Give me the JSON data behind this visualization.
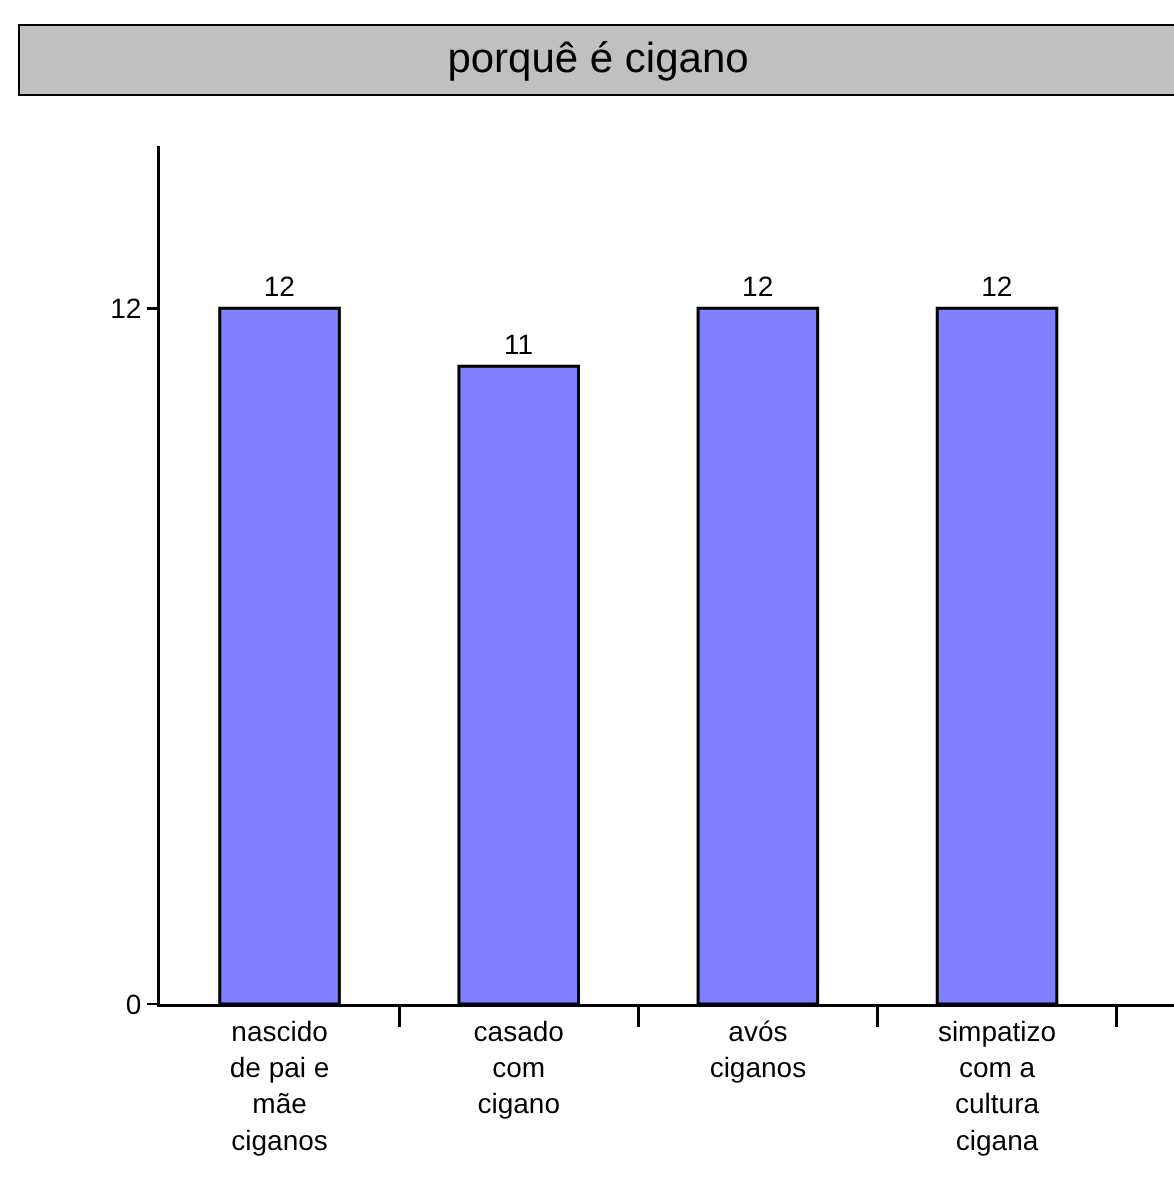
{
  "chart_data": {
    "type": "bar",
    "title": "porquê é cigano",
    "categories": [
      "nascido de pai e mãe ciganos",
      "casado com cigano",
      "avós ciganos",
      "simpatizo com a cultura cigana"
    ],
    "values": [
      12,
      11,
      12,
      12
    ],
    "color": "#8080ff",
    "ylim": [
      0,
      14.8
    ],
    "yticks": [
      0,
      12
    ],
    "data_labels": true,
    "grid": false,
    "legend": false
  }
}
